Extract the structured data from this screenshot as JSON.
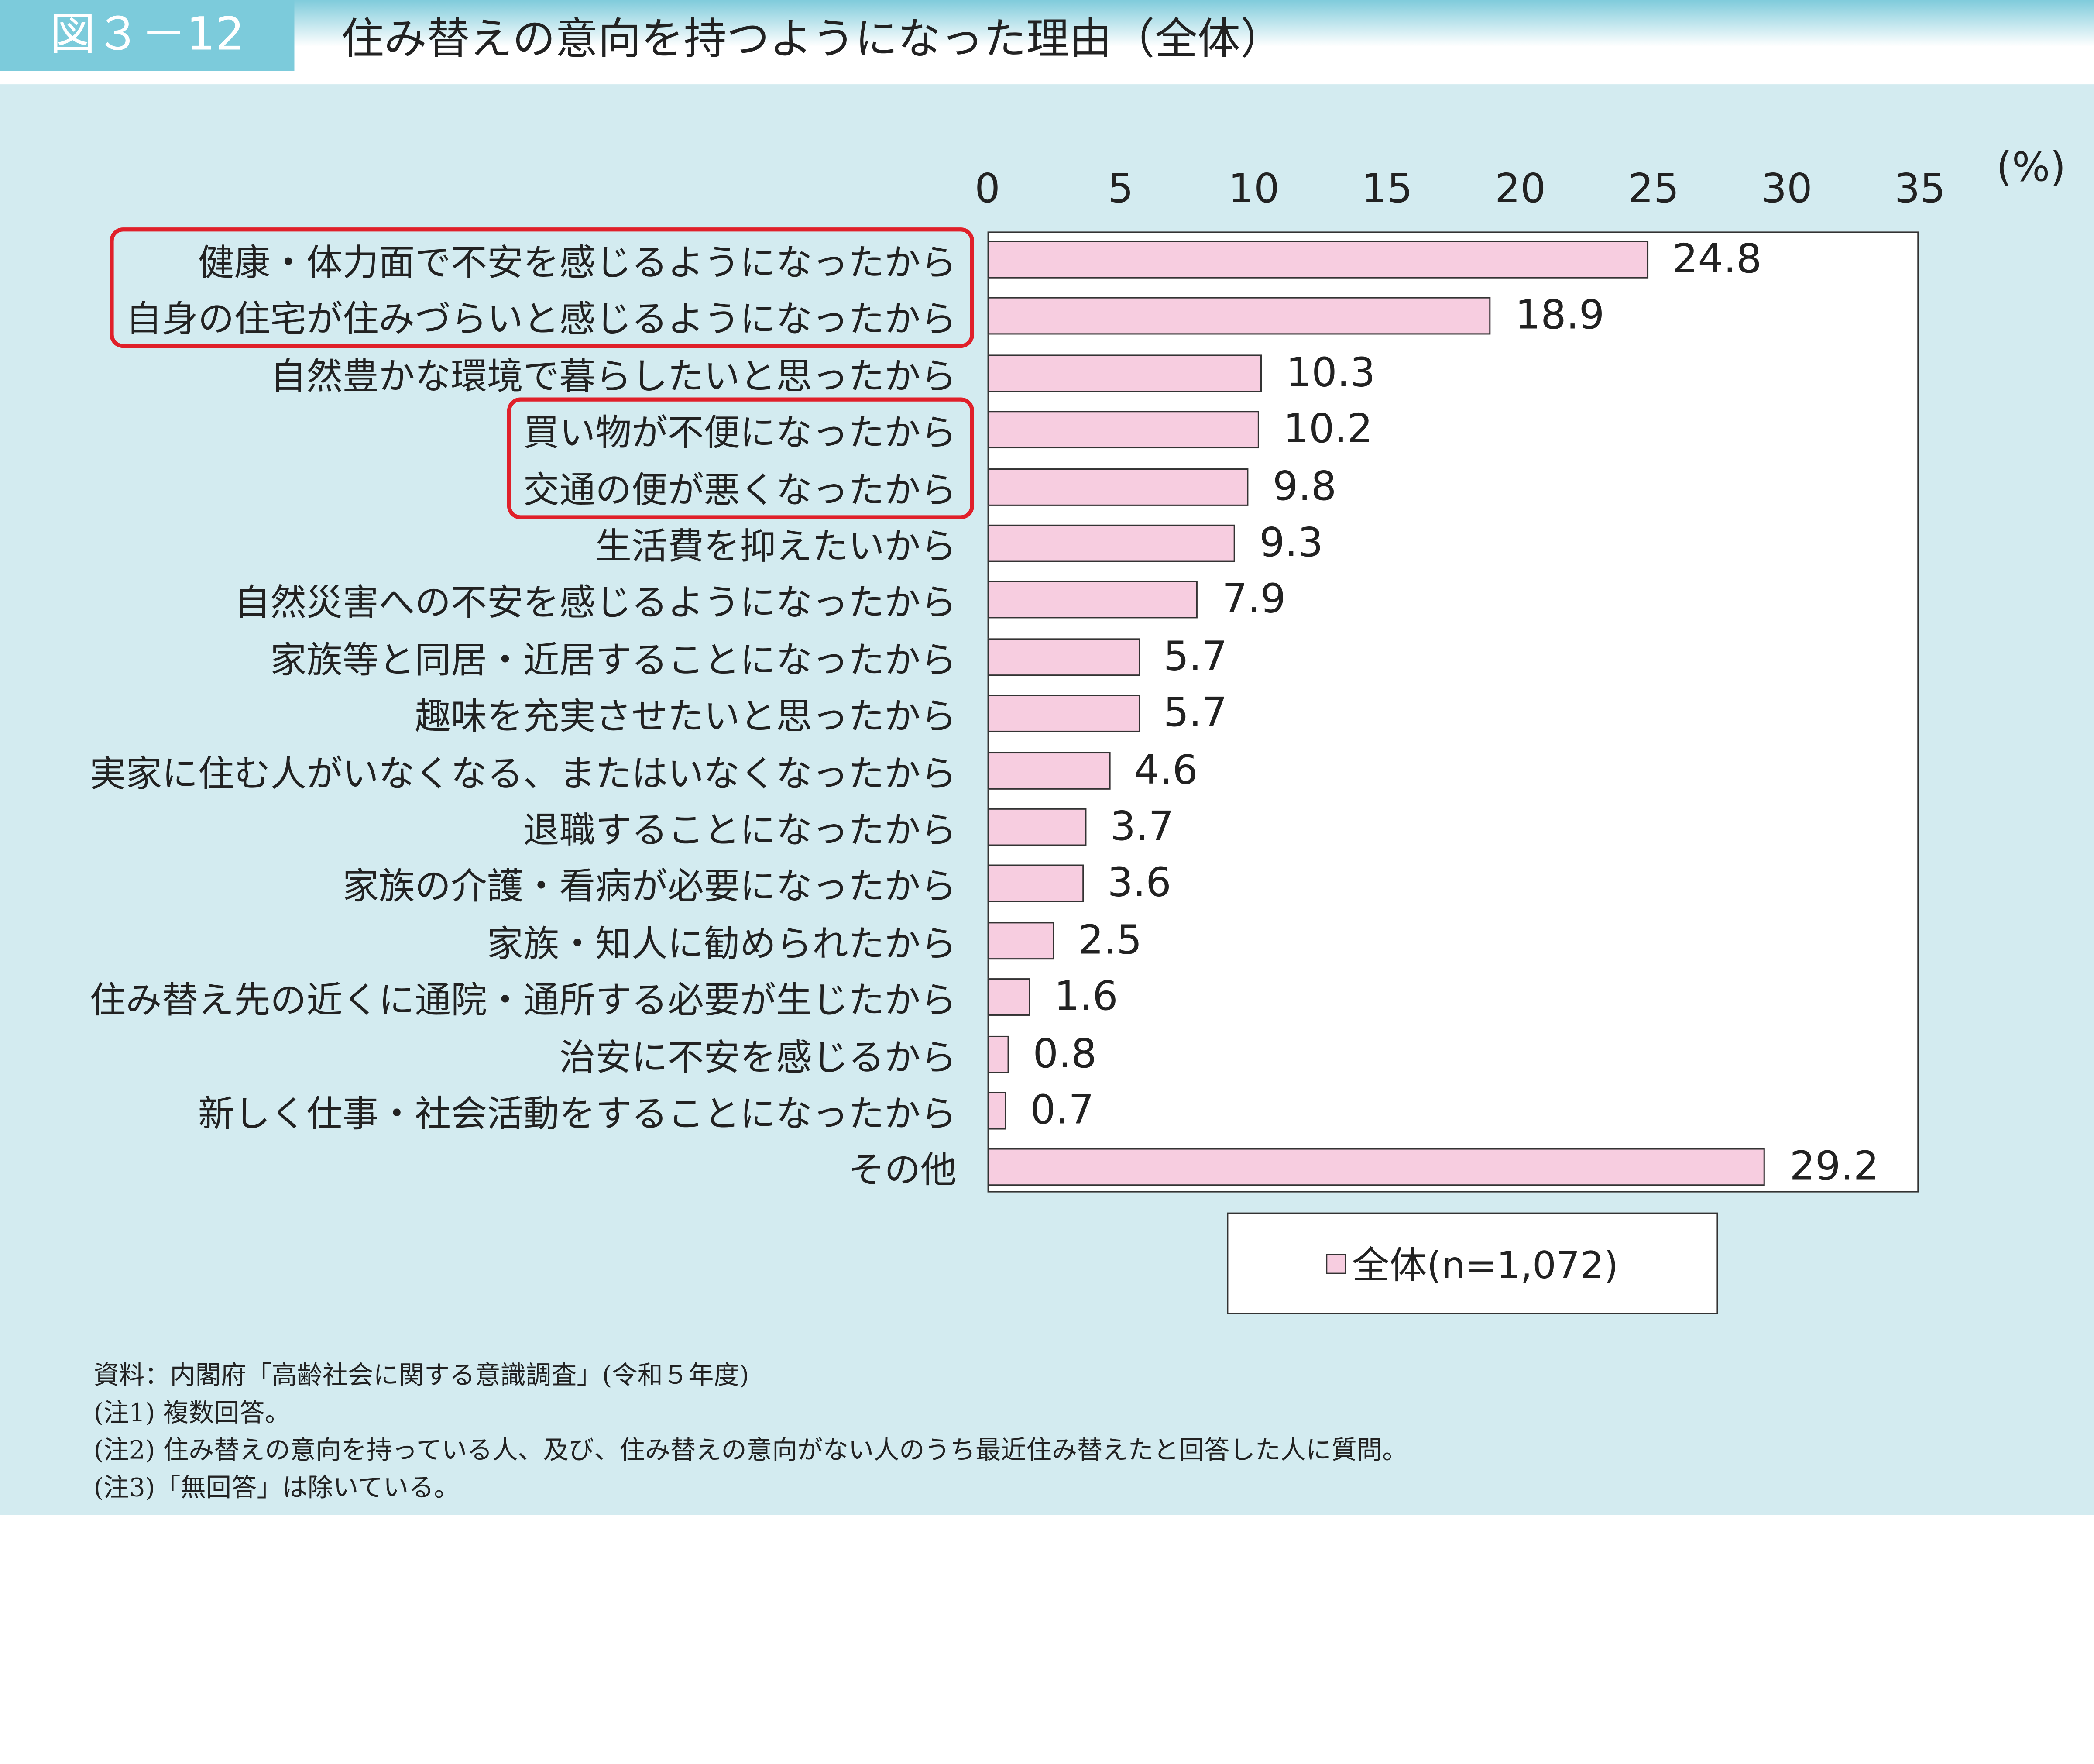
{
  "header": {
    "figure_label": "図３－12",
    "title": "住み替えの意向を持つようになった理由（全体）"
  },
  "chart_data": {
    "type": "bar",
    "orientation": "horizontal",
    "title": "住み替えの意向を持つようになった理由（全体）",
    "unit": "(%)",
    "xlim": [
      0,
      35
    ],
    "ticks": [
      "0",
      "5",
      "10",
      "15",
      "20",
      "25",
      "30",
      "35"
    ],
    "categories": [
      "健康・体力面で不安を感じるようになったから",
      "自身の住宅が住みづらいと感じるようになったから",
      "自然豊かな環境で暮らしたいと思ったから",
      "買い物が不便になったから",
      "交通の便が悪くなったから",
      "生活費を抑えたいから",
      "自然災害への不安を感じるようになったから",
      "家族等と同居・近居することになったから",
      "趣味を充実させたいと思ったから",
      "実家に住む人がいなくなる、またはいなくなったから",
      "退職することになったから",
      "家族の介護・看病が必要になったから",
      "家族・知人に勧められたから",
      "住み替え先の近くに通院・通所する必要が生じたから",
      "治安に不安を感じるから",
      "新しく仕事・社会活動をすることになったから",
      "その他"
    ],
    "series": [
      {
        "name": "全体(n=1,072)",
        "values": [
          24.8,
          18.9,
          10.3,
          10.2,
          9.8,
          9.3,
          7.9,
          5.7,
          5.7,
          4.6,
          3.7,
          3.6,
          2.5,
          1.6,
          0.8,
          0.7,
          29.2
        ]
      }
    ],
    "value_labels": [
      "24.8",
      "18.9",
      "10.3",
      "10.2",
      "9.8",
      "9.3",
      "7.9",
      "5.7",
      "5.7",
      "4.6",
      "3.7",
      "3.6",
      "2.5",
      "1.6",
      "0.8",
      "0.7",
      "29.2"
    ],
    "highlighted_groups": [
      [
        0,
        1
      ],
      [
        3,
        4
      ]
    ],
    "legend": {
      "label": "全体(n=1,072)",
      "position": "bottom"
    },
    "colors": {
      "bar": "#f7cde0",
      "highlight": "#e0202a",
      "panel": "#d3ebf0",
      "label_bg": "#7ccbdb"
    },
    "grid": false
  },
  "notes": [
    "資料：内閣府「高齢社会に関する意識調査」(令和５年度)",
    "(注1) 複数回答。",
    "(注2) 住み替えの意向を持っている人、及び、住み替えの意向がない人のうち最近住み替えたと回答した人に質問。",
    "(注3)「無回答」は除いている。"
  ]
}
